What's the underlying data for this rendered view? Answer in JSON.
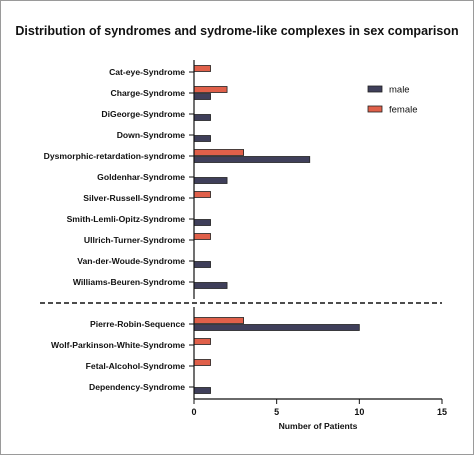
{
  "chart_data": {
    "type": "bar",
    "orientation": "horizontal",
    "title": "Distribution of syndromes and sydrome-like complexes in sex comparison",
    "xlabel": "Number of Patients",
    "ylabel": "",
    "xlim": [
      0,
      15
    ],
    "xticks": [
      "0",
      "5",
      "10",
      "15"
    ],
    "grid": false,
    "legend_position": "top-right",
    "categories": [
      "Cat-eye-Syndrome",
      "Charge-Syndrome",
      "DiGeorge-Syndrome",
      "Down-Syndrome",
      "Dysmorphic-retardation-syndrome",
      "Goldenhar-Syndrome",
      "Silver-Russell-Syndrome",
      "Smith-Lemli-Opitz-Syndrome",
      "Ullrich-Turner-Syndrome",
      "Van-der-Woude-Syndrome",
      "Williams-Beuren-Syndrome",
      "Pierre-Robin-Sequence",
      "Wolf-Parkinson-White-Syndrome",
      "Fetal-Alcohol-Syndrome",
      "Dependency-Syndrome"
    ],
    "separator_after_category": "Williams-Beuren-Syndrome",
    "series": [
      {
        "name": "male",
        "color": "#3f3f5a",
        "values": [
          0,
          1,
          1,
          1,
          7,
          2,
          0,
          1,
          0,
          1,
          2,
          10,
          0,
          0,
          1
        ]
      },
      {
        "name": "female",
        "color": "#e0604a",
        "values": [
          1,
          2,
          0,
          0,
          3,
          0,
          1,
          0,
          1,
          0,
          0,
          3,
          1,
          1,
          0
        ]
      }
    ]
  }
}
